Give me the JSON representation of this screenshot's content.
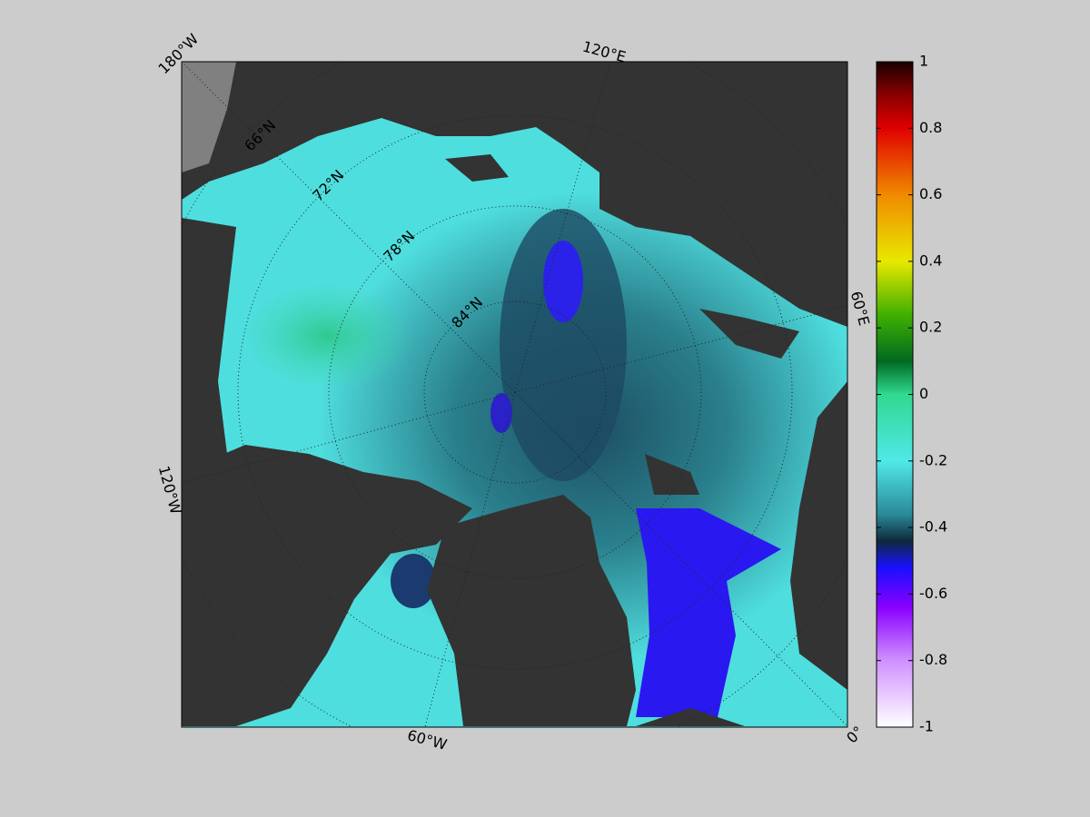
{
  "map": {
    "longitude_labels": [
      "180°W",
      "120°E",
      "60°E",
      "0°",
      "60°W",
      "120°W"
    ],
    "latitude_labels": [
      "66°N",
      "72°N",
      "78°N",
      "84°N"
    ]
  },
  "colorbar": {
    "lim": [
      -1,
      1
    ],
    "ticks": [
      1,
      0.8,
      0.6,
      0.4,
      0.2,
      0,
      -0.2,
      -0.4,
      -0.6,
      -0.8,
      -1
    ]
  }
}
